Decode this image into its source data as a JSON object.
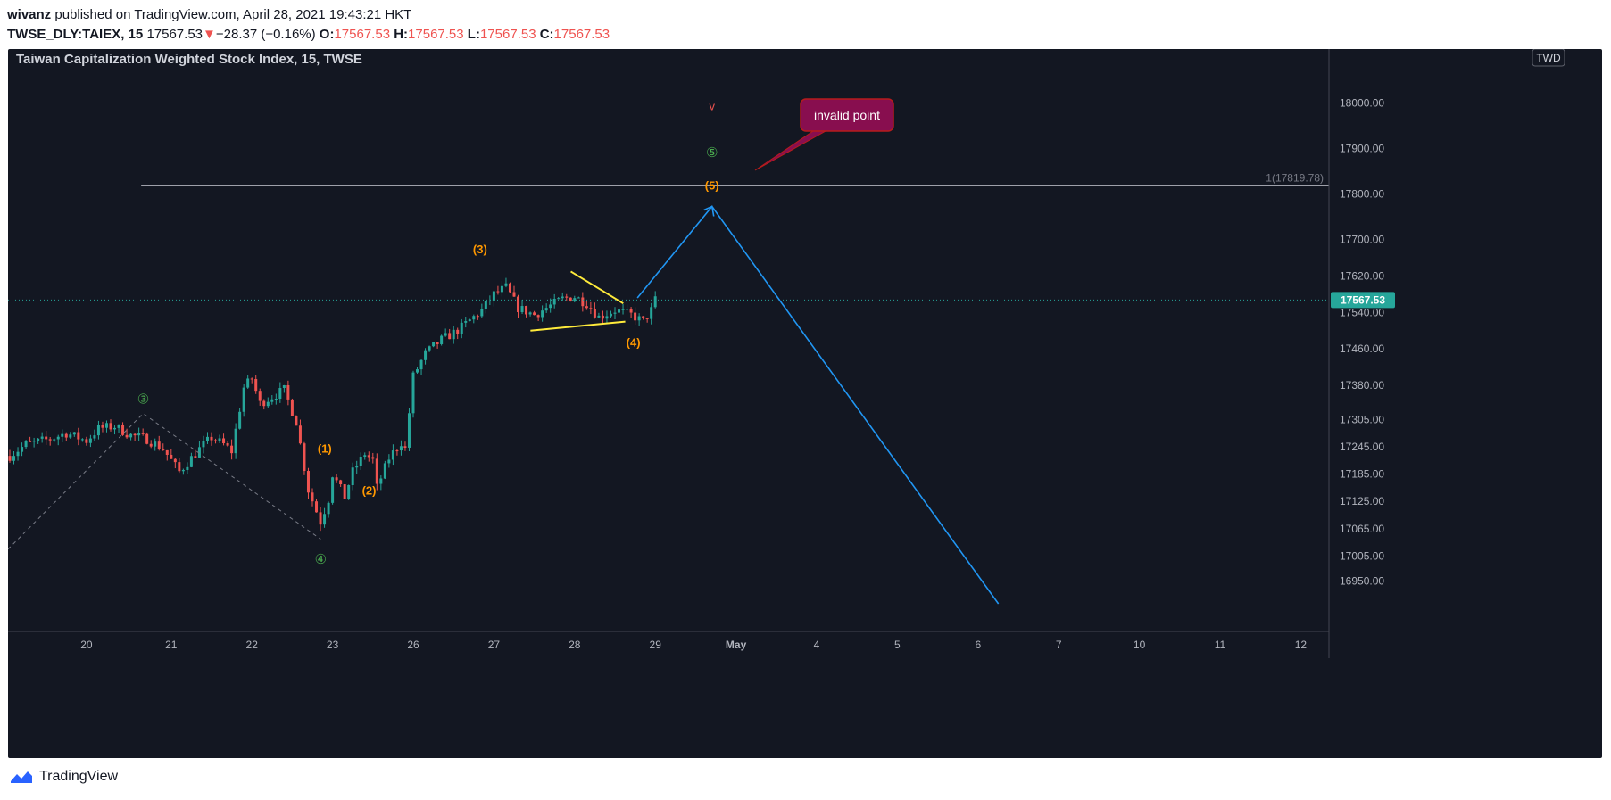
{
  "header": {
    "author": "wivanz",
    "published": "published on TradingView.com, April 28, 2021 19:43:21 HKT",
    "symbol": "TWSE_DLY:TAIEX, 15",
    "price": "17567.53",
    "change": "−28.37 (−0.16%)",
    "o_label": "O:",
    "o_value": "17567.53",
    "h_label": "H:",
    "h_value": "17567.53",
    "l_label": "L:",
    "l_value": "17567.53",
    "c_label": "C:",
    "c_value": "17567.53"
  },
  "footer": {
    "brand": "TradingView",
    "logo_icon": "tradingview-logo-icon"
  },
  "colors": {
    "bg": "#131722",
    "up": "#26a69a",
    "down": "#ef5350",
    "axis_text": "#b2b5be",
    "grid": "#2a2e39",
    "orange": "#ff9800",
    "green_label": "#4caf50",
    "blue": "#2196f3",
    "yellow": "#ffeb3b",
    "callout": "#880e4f"
  },
  "chart_data": {
    "type": "candlestick",
    "title": "Taiwan Capitalization Weighted Stock Index, 15, TWSE",
    "currency": "TWD",
    "ylim": [
      16900,
      18060
    ],
    "y_ticks": [
      18000,
      17900,
      17800,
      17700,
      17620,
      17540,
      17460,
      17380,
      17305,
      17245,
      17185,
      17125,
      17065,
      17005,
      16950
    ],
    "y_tick_labels": [
      "18000.00",
      "17900.00",
      "17800.00",
      "17700.00",
      "17620.00",
      "17540.00",
      "17460.00",
      "17380.00",
      "17305.00",
      "17245.00",
      "17185.00",
      "17125.00",
      "17065.00",
      "17005.00",
      "16950.00"
    ],
    "x_ticks": [
      {
        "label": "20",
        "idx": 19
      },
      {
        "label": "21",
        "idx": 40
      },
      {
        "label": "22",
        "idx": 60
      },
      {
        "label": "23",
        "idx": 80
      },
      {
        "label": "26",
        "idx": 100
      },
      {
        "label": "27",
        "idx": 120
      },
      {
        "label": "28",
        "idx": 140
      },
      {
        "label": "29",
        "idx": 160
      },
      {
        "label": "May",
        "idx": 180
      },
      {
        "label": "4",
        "idx": 200
      },
      {
        "label": "5",
        "idx": 220
      },
      {
        "label": "6",
        "idx": 240
      },
      {
        "label": "7",
        "idx": 260
      },
      {
        "label": "10",
        "idx": 280
      },
      {
        "label": "11",
        "idx": 300
      },
      {
        "label": "12",
        "idx": 320
      }
    ],
    "x_range": [
      0,
      329
    ],
    "last_price": 17567.53,
    "last_price_label": "17567.53",
    "horizontal_level": {
      "value": 17819.78,
      "label": "1(17819.78)",
      "from_idx": 33
    },
    "close_path": [
      [
        0,
        17225
      ],
      [
        4,
        17250
      ],
      [
        10,
        17262
      ],
      [
        14,
        17275
      ],
      [
        19,
        17258
      ],
      [
        22,
        17285
      ],
      [
        26,
        17290
      ],
      [
        30,
        17270
      ],
      [
        34,
        17262
      ],
      [
        38,
        17240
      ],
      [
        40,
        17215
      ],
      [
        42,
        17190
      ],
      [
        44,
        17210
      ],
      [
        47,
        17240
      ],
      [
        50,
        17265
      ],
      [
        53,
        17250
      ],
      [
        55,
        17235
      ],
      [
        58,
        17375
      ],
      [
        60,
        17395
      ],
      [
        62,
        17340
      ],
      [
        65,
        17355
      ],
      [
        68,
        17370
      ],
      [
        71,
        17300
      ],
      [
        74,
        17150
      ],
      [
        77,
        17080
      ],
      [
        79,
        17130
      ],
      [
        80,
        17185
      ],
      [
        83,
        17135
      ],
      [
        85,
        17190
      ],
      [
        88,
        17230
      ],
      [
        90,
        17215
      ],
      [
        91,
        17155
      ],
      [
        94,
        17220
      ],
      [
        97,
        17255
      ],
      [
        98,
        17240
      ],
      [
        100,
        17400
      ],
      [
        103,
        17450
      ],
      [
        107,
        17480
      ],
      [
        111,
        17500
      ],
      [
        115,
        17530
      ],
      [
        117,
        17545
      ],
      [
        120,
        17580
      ],
      [
        123,
        17595
      ],
      [
        126,
        17550
      ],
      [
        130,
        17535
      ],
      [
        134,
        17555
      ],
      [
        137,
        17570
      ],
      [
        140,
        17575
      ],
      [
        143,
        17560
      ],
      [
        146,
        17530
      ],
      [
        150,
        17545
      ],
      [
        154,
        17535
      ],
      [
        157,
        17520
      ],
      [
        159,
        17545
      ],
      [
        160,
        17567.53
      ]
    ],
    "wave_minor": [
      {
        "label": "(1)",
        "idx": 78.5,
        "value": 17232
      },
      {
        "label": "(2)",
        "idx": 89.5,
        "value": 17140
      },
      {
        "label": "(3)",
        "idx": 117,
        "value": 17670
      },
      {
        "label": "(4)",
        "idx": 155,
        "value": 17465
      },
      {
        "label": "(5)",
        "idx": 174.5,
        "value": 17810
      }
    ],
    "wave_major": [
      {
        "label": "③",
        "idx": 33.5,
        "value": 17340
      },
      {
        "label": "④",
        "idx": 77.5,
        "value": 16988
      },
      {
        "label": "⑤",
        "idx": 174.5,
        "value": 17882
      }
    ],
    "top_marker": {
      "label": "v",
      "idx": 174.5,
      "value": 17985
    },
    "dashed_wave": [
      [
        0,
        17020
      ],
      [
        33.5,
        17318
      ],
      [
        77.5,
        17042
      ]
    ],
    "triangle": {
      "upper": [
        [
          139.5,
          17630
        ],
        [
          152.5,
          17560
        ]
      ],
      "lower": [
        [
          129.5,
          17500
        ],
        [
          153,
          17520
        ]
      ]
    },
    "projection": [
      [
        156,
        17572
      ],
      [
        174.5,
        17773
      ],
      [
        245.5,
        16900
      ]
    ],
    "annotations": [
      {
        "text": "invalid point",
        "type": "callout",
        "idx": 192,
        "value": 17895
      }
    ]
  }
}
